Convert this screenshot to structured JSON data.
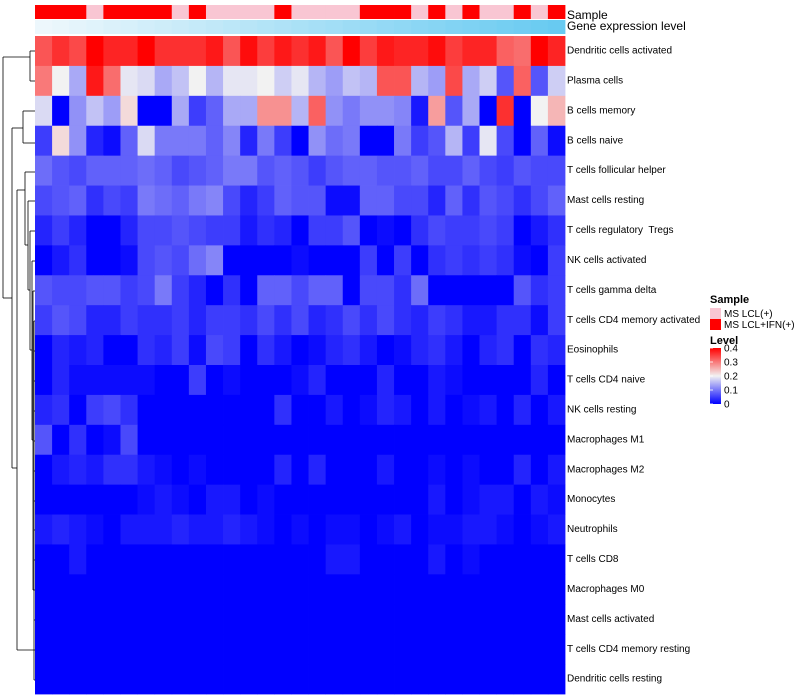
{
  "chart_data": {
    "type": "heatmap",
    "title": "",
    "annotations": {
      "sample_track_label": "Sample",
      "expression_track_label": "Gene expression level"
    },
    "legend": {
      "sample": {
        "title": "Sample",
        "entries": [
          {
            "label": "MS LCL(+)",
            "color": "#f9c6d3"
          },
          {
            "label": "MS LCL+IFN(+)",
            "color": "#ff0000"
          }
        ]
      },
      "level": {
        "title": "Level",
        "ticks": [
          0.4,
          0.3,
          0.2,
          0.1,
          0
        ],
        "range": [
          0,
          0.4
        ],
        "colors": [
          "#0000ff",
          "#f2f2f2",
          "#ff0000"
        ]
      },
      "placement": "right"
    },
    "sample_groups": [
      "MS LCL+IFN(+)",
      "MS LCL+IFN(+)",
      "MS LCL+IFN(+)",
      "MS LCL(+)",
      "MS LCL+IFN(+)",
      "MS LCL+IFN(+)",
      "MS LCL+IFN(+)",
      "MS LCL+IFN(+)",
      "MS LCL(+)",
      "MS LCL+IFN(+)",
      "MS LCL(+)",
      "MS LCL(+)",
      "MS LCL(+)",
      "MS LCL(+)",
      "MS LCL+IFN(+)",
      "MS LCL(+)",
      "MS LCL(+)",
      "MS LCL(+)",
      "MS LCL(+)",
      "MS LCL+IFN(+)",
      "MS LCL+IFN(+)",
      "MS LCL+IFN(+)",
      "MS LCL(+)",
      "MS LCL+IFN(+)",
      "MS LCL(+)",
      "MS LCL+IFN(+)",
      "MS LCL(+)",
      "MS LCL(+)",
      "MS LCL+IFN(+)",
      "MS LCL(+)",
      "MS LCL+IFN(+)"
    ],
    "expression_track": [
      0.02,
      0.05,
      0.08,
      0.11,
      0.14,
      0.17,
      0.2,
      0.23,
      0.26,
      0.29,
      0.32,
      0.35,
      0.38,
      0.41,
      0.44,
      0.47,
      0.5,
      0.53,
      0.56,
      0.59,
      0.62,
      0.65,
      0.68,
      0.71,
      0.74,
      0.77,
      0.8,
      0.83,
      0.86,
      0.89,
      0.92
    ],
    "rows": [
      "Dendritic cells activated",
      "Plasma cells",
      "B cells memory",
      "B cells naive",
      "T cells follicular helper",
      "Mast cells resting",
      "T cells regulatory  Tregs",
      "NK cells activated",
      "T cells gamma delta",
      "T cells CD4 memory activated",
      "Eosinophils",
      "T cells CD4 naive",
      "NK cells resting",
      "Macrophages M1",
      "Macrophages M2",
      "Monocytes",
      "Neutrophils",
      "T cells CD8",
      "Macrophages M0",
      "Mast cells activated",
      "T cells CD4 memory resting",
      "Dendritic cells resting"
    ],
    "values": [
      [
        0.33,
        0.36,
        0.34,
        0.4,
        0.37,
        0.37,
        0.4,
        0.36,
        0.36,
        0.36,
        0.38,
        0.33,
        0.39,
        0.35,
        0.38,
        0.36,
        0.38,
        0.33,
        0.4,
        0.35,
        0.38,
        0.37,
        0.37,
        0.39,
        0.35,
        0.37,
        0.37,
        0.32,
        0.31,
        0.4,
        0.37
      ],
      [
        0.3,
        0.2,
        0.14,
        0.38,
        0.31,
        0.19,
        0.18,
        0.14,
        0.16,
        0.2,
        0.15,
        0.19,
        0.19,
        0.2,
        0.17,
        0.19,
        0.15,
        0.13,
        0.16,
        0.15,
        0.33,
        0.33,
        0.15,
        0.13,
        0.34,
        0.14,
        0.17,
        0.07,
        0.32,
        0.07,
        0.17
      ],
      [
        0.18,
        0.0,
        0.12,
        0.16,
        0.13,
        0.22,
        0.0,
        0.0,
        0.14,
        0.05,
        0.08,
        0.14,
        0.14,
        0.28,
        0.28,
        0.15,
        0.32,
        0.12,
        0.1,
        0.12,
        0.12,
        0.11,
        0.02,
        0.27,
        0.07,
        0.14,
        0.0,
        0.36,
        0.0,
        0.2,
        0.25
      ],
      [
        0.05,
        0.22,
        0.12,
        0.03,
        0.01,
        0.08,
        0.18,
        0.1,
        0.1,
        0.1,
        0.08,
        0.11,
        0.03,
        0.1,
        0.05,
        0.0,
        0.12,
        0.09,
        0.1,
        0.0,
        0.0,
        0.1,
        0.05,
        0.07,
        0.15,
        0.05,
        0.19,
        0.06,
        0.0,
        0.08,
        0.01
      ],
      [
        0.09,
        0.07,
        0.06,
        0.08,
        0.08,
        0.08,
        0.09,
        0.08,
        0.06,
        0.07,
        0.08,
        0.1,
        0.1,
        0.07,
        0.08,
        0.07,
        0.05,
        0.07,
        0.08,
        0.08,
        0.07,
        0.07,
        0.08,
        0.06,
        0.06,
        0.08,
        0.06,
        0.05,
        0.07,
        0.06,
        0.06
      ],
      [
        0.06,
        0.07,
        0.08,
        0.04,
        0.06,
        0.05,
        0.1,
        0.09,
        0.08,
        0.1,
        0.11,
        0.06,
        0.03,
        0.05,
        0.08,
        0.07,
        0.07,
        0.01,
        0.01,
        0.08,
        0.08,
        0.06,
        0.06,
        0.03,
        0.08,
        0.04,
        0.07,
        0.06,
        0.04,
        0.06,
        0.08
      ],
      [
        0.03,
        0.05,
        0.03,
        0.0,
        0.0,
        0.03,
        0.06,
        0.06,
        0.07,
        0.06,
        0.05,
        0.05,
        0.02,
        0.04,
        0.03,
        0.0,
        0.05,
        0.05,
        0.07,
        0.0,
        0.01,
        0.0,
        0.04,
        0.06,
        0.05,
        0.05,
        0.06,
        0.05,
        0.0,
        0.02,
        0.04
      ],
      [
        0.0,
        0.02,
        0.04,
        0.0,
        0.0,
        0.01,
        0.06,
        0.07,
        0.06,
        0.09,
        0.11,
        0.0,
        0.0,
        0.0,
        0.0,
        0.01,
        0.0,
        0.0,
        0.0,
        0.05,
        0.0,
        0.05,
        0.0,
        0.04,
        0.05,
        0.04,
        0.05,
        0.04,
        0.01,
        0.0,
        0.05
      ],
      [
        0.07,
        0.06,
        0.06,
        0.07,
        0.07,
        0.05,
        0.06,
        0.1,
        0.05,
        0.03,
        0.0,
        0.04,
        0.0,
        0.08,
        0.08,
        0.06,
        0.08,
        0.08,
        0.0,
        0.06,
        0.06,
        0.04,
        0.09,
        0.0,
        0.0,
        0.0,
        0.0,
        0.0,
        0.07,
        0.04,
        0.05
      ],
      [
        0.05,
        0.07,
        0.06,
        0.03,
        0.03,
        0.05,
        0.04,
        0.04,
        0.05,
        0.03,
        0.05,
        0.05,
        0.04,
        0.06,
        0.04,
        0.06,
        0.03,
        0.04,
        0.06,
        0.04,
        0.06,
        0.04,
        0.03,
        0.05,
        0.04,
        0.02,
        0.02,
        0.04,
        0.04,
        0.01,
        0.05
      ],
      [
        0.0,
        0.03,
        0.02,
        0.03,
        0.0,
        0.0,
        0.04,
        0.03,
        0.05,
        0.01,
        0.06,
        0.05,
        0.0,
        0.04,
        0.02,
        0.0,
        0.01,
        0.03,
        0.04,
        0.02,
        0.0,
        0.01,
        0.03,
        0.04,
        0.02,
        0.0,
        0.03,
        0.04,
        0.0,
        0.04,
        0.03
      ],
      [
        0.0,
        0.03,
        0.01,
        0.01,
        0.01,
        0.01,
        0.01,
        0.0,
        0.0,
        0.05,
        0.0,
        0.01,
        0.0,
        0.0,
        0.0,
        0.01,
        0.03,
        0.0,
        0.0,
        0.0,
        0.03,
        0.0,
        0.0,
        0.02,
        0.01,
        0.0,
        0.0,
        0.0,
        0.0,
        0.03,
        0.0
      ],
      [
        0.03,
        0.04,
        0.0,
        0.05,
        0.06,
        0.04,
        0.0,
        0.0,
        0.0,
        0.0,
        0.0,
        0.0,
        0.0,
        0.0,
        0.04,
        0.0,
        0.0,
        0.02,
        0.0,
        0.01,
        0.03,
        0.02,
        0.0,
        0.02,
        0.0,
        0.01,
        0.02,
        0.0,
        0.03,
        0.0,
        0.02
      ],
      [
        0.07,
        0.0,
        0.04,
        0.0,
        0.01,
        0.06,
        0.0,
        0.0,
        0.0,
        0.0,
        0.0,
        0.0,
        0.0,
        0.0,
        0.0,
        0.0,
        0.0,
        0.0,
        0.0,
        0.0,
        0.0,
        0.0,
        0.0,
        0.0,
        0.0,
        0.0,
        0.0,
        0.0,
        0.0,
        0.0,
        0.0
      ],
      [
        0.0,
        0.02,
        0.03,
        0.02,
        0.04,
        0.04,
        0.02,
        0.01,
        0.0,
        0.01,
        0.0,
        0.0,
        0.0,
        0.0,
        0.03,
        0.0,
        0.03,
        0.0,
        0.0,
        0.0,
        0.02,
        0.0,
        0.0,
        0.01,
        0.0,
        0.01,
        0.0,
        0.0,
        0.03,
        0.0,
        0.02
      ],
      [
        0.0,
        0.0,
        0.0,
        0.0,
        0.0,
        0.0,
        0.01,
        0.02,
        0.01,
        0.0,
        0.02,
        0.02,
        0.0,
        0.01,
        0.0,
        0.0,
        0.0,
        0.0,
        0.0,
        0.0,
        0.0,
        0.0,
        0.0,
        0.02,
        0.0,
        0.01,
        0.02,
        0.02,
        0.0,
        0.02,
        0.01
      ],
      [
        0.02,
        0.03,
        0.02,
        0.01,
        0.0,
        0.02,
        0.02,
        0.02,
        0.03,
        0.02,
        0.02,
        0.03,
        0.02,
        0.01,
        0.0,
        0.01,
        0.0,
        0.01,
        0.01,
        0.0,
        0.01,
        0.02,
        0.0,
        0.01,
        0.01,
        0.02,
        0.02,
        0.01,
        0.0,
        0.01,
        0.02
      ],
      [
        0.0,
        0.0,
        0.02,
        0.0,
        0.0,
        0.0,
        0.0,
        0.0,
        0.0,
        0.0,
        0.0,
        0.0,
        0.0,
        0.0,
        0.0,
        0.0,
        0.0,
        0.02,
        0.02,
        0.0,
        0.0,
        0.0,
        0.0,
        0.02,
        0.0,
        0.01,
        0.0,
        0.0,
        0.0,
        0.0,
        0.0
      ],
      [
        0.0,
        0.0,
        0.0,
        0.0,
        0.0,
        0.0,
        0.0,
        0.0,
        0.0,
        0.0,
        0.0,
        0.0,
        0.0,
        0.0,
        0.0,
        0.0,
        0.0,
        0.0,
        0.0,
        0.0,
        0.0,
        0.0,
        0.0,
        0.0,
        0.0,
        0.0,
        0.0,
        0.0,
        0.0,
        0.0,
        0.0
      ],
      [
        0.0,
        0.0,
        0.0,
        0.0,
        0.0,
        0.0,
        0.0,
        0.0,
        0.0,
        0.0,
        0.0,
        0.0,
        0.0,
        0.0,
        0.0,
        0.0,
        0.0,
        0.0,
        0.0,
        0.0,
        0.0,
        0.0,
        0.0,
        0.0,
        0.0,
        0.0,
        0.0,
        0.0,
        0.0,
        0.0,
        0.0
      ],
      [
        0.0,
        0.0,
        0.0,
        0.0,
        0.0,
        0.0,
        0.0,
        0.0,
        0.0,
        0.0,
        0.0,
        0.0,
        0.0,
        0.0,
        0.0,
        0.0,
        0.0,
        0.0,
        0.0,
        0.0,
        0.0,
        0.0,
        0.0,
        0.0,
        0.0,
        0.0,
        0.0,
        0.0,
        0.0,
        0.0,
        0.0
      ],
      [
        0.0,
        0.0,
        0.0,
        0.0,
        0.0,
        0.0,
        0.0,
        0.0,
        0.0,
        0.0,
        0.0,
        0.0,
        0.0,
        0.0,
        0.0,
        0.0,
        0.0,
        0.0,
        0.0,
        0.0,
        0.0,
        0.0,
        0.0,
        0.0,
        0.0,
        0.0,
        0.0,
        0.0,
        0.0,
        0.0,
        0.0
      ]
    ]
  }
}
